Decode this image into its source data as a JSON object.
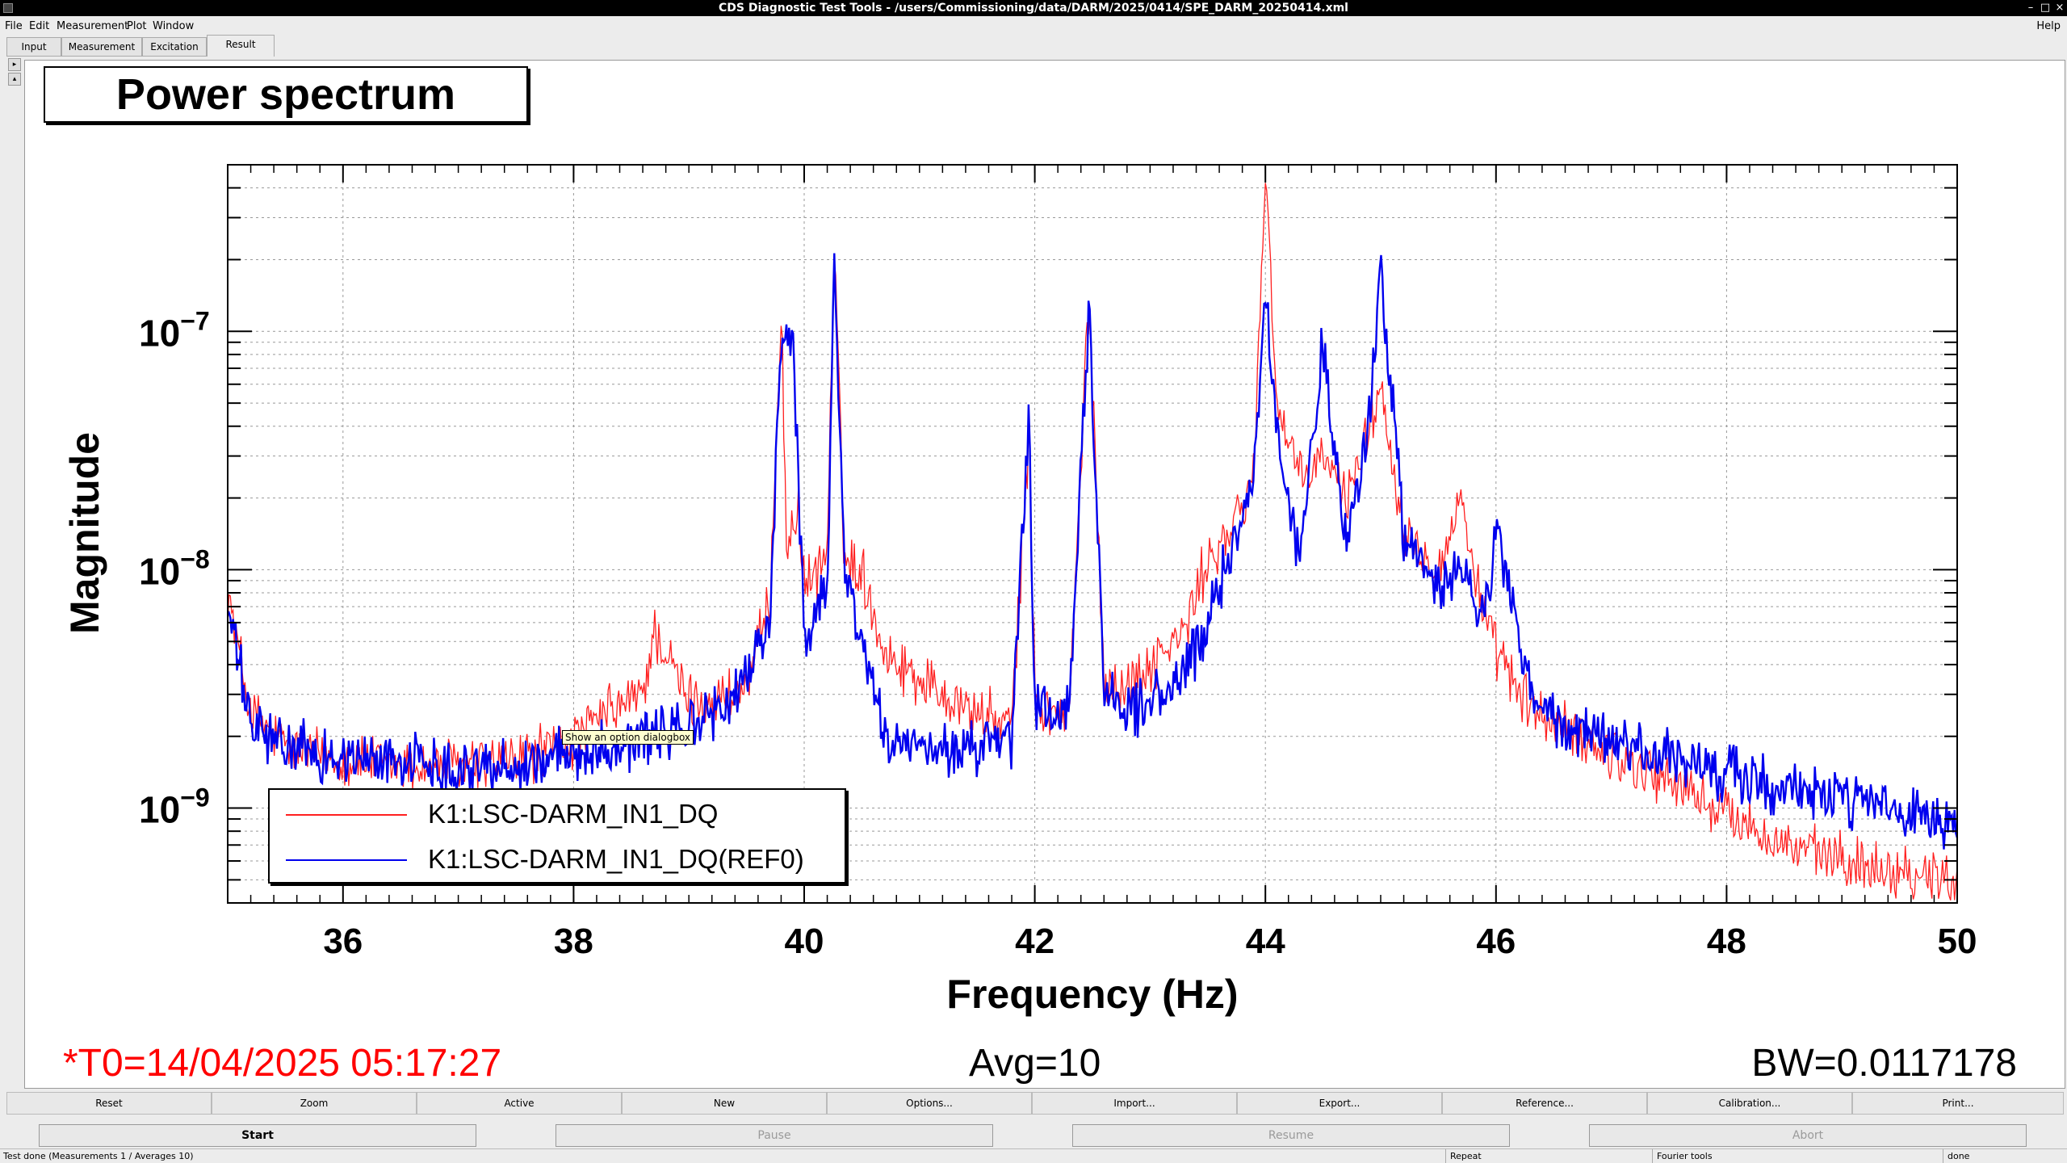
{
  "window": {
    "title": "CDS Diagnostic Test Tools - /users/Commissioning/data/DARM/2025/0414/SPE_DARM_20250414.xml"
  },
  "menu": {
    "items": [
      {
        "label": "File"
      },
      {
        "label": "Edit"
      },
      {
        "label": "Measurement"
      },
      {
        "label": "Plot"
      },
      {
        "label": "Window"
      }
    ],
    "help": "Help"
  },
  "tabs": [
    {
      "label": "Input"
    },
    {
      "label": "Measurement"
    },
    {
      "label": "Excitation"
    },
    {
      "label": "Result",
      "active": true
    }
  ],
  "plot": {
    "title": "Power spectrum",
    "tooltip": "Show an option dialogbox",
    "t0": "*T0=14/04/2025 05:17:27",
    "avg": "Avg=10",
    "bw": "BW=0.0117178"
  },
  "chart_data": {
    "type": "line",
    "title": "Power spectrum",
    "xlabel": "Frequency (Hz)",
    "ylabel": "Magnitude",
    "xlim": [
      35,
      50
    ],
    "ylim": [
      4e-10,
      5e-07
    ],
    "y_scale": "log",
    "grid": true,
    "legend_position": "bottom-left",
    "x_ticks": [
      "36",
      "38",
      "40",
      "42",
      "44",
      "46",
      "48",
      "50"
    ],
    "y_ticks": [
      {
        "base": "10",
        "exp": "−9"
      },
      {
        "base": "10",
        "exp": "−8"
      },
      {
        "base": "10",
        "exp": "−7"
      }
    ],
    "series": [
      {
        "name": "K1:LSC-DARM_IN1_DQ",
        "color": "#ff2020",
        "x": [
          35.0,
          35.2,
          35.5,
          36.0,
          36.5,
          37.0,
          37.5,
          38.0,
          38.3,
          38.6,
          38.7,
          39.0,
          39.3,
          39.5,
          39.7,
          39.8,
          39.85,
          39.95,
          40.0,
          40.2,
          40.26,
          40.35,
          40.5,
          40.7,
          41.0,
          41.5,
          41.8,
          41.95,
          42.0,
          42.1,
          42.3,
          42.47,
          42.6,
          42.8,
          43.0,
          43.3,
          43.5,
          43.7,
          43.9,
          44.0,
          44.1,
          44.3,
          44.5,
          44.7,
          44.9,
          45.0,
          45.2,
          45.5,
          45.7,
          45.9,
          46.0,
          46.3,
          46.6,
          47.0,
          47.5,
          48.0,
          48.5,
          49.0,
          49.5,
          50.0
        ],
        "y": [
          8e-09,
          2.5e-09,
          1.8e-09,
          1.6e-09,
          1.5e-09,
          1.5e-09,
          1.6e-09,
          1.9e-09,
          2.5e-09,
          3e-09,
          5.5e-09,
          2.8e-09,
          2.9e-09,
          3.2e-09,
          7e-09,
          1.3e-07,
          1.1e-08,
          2e-08,
          8e-09,
          1.2e-08,
          2.2e-07,
          1.1e-08,
          1e-08,
          4.5e-09,
          3.5e-09,
          2.5e-09,
          2.2e-09,
          3.8e-08,
          3e-09,
          2.5e-09,
          2.5e-09,
          1.4e-07,
          3.5e-09,
          3.2e-09,
          4e-09,
          5.5e-09,
          1.1e-08,
          1.4e-08,
          2.5e-08,
          5e-07,
          5e-08,
          2.3e-08,
          3e-08,
          2e-08,
          4e-08,
          6e-08,
          1.5e-08,
          1e-08,
          2e-08,
          6e-09,
          4.5e-09,
          2.6e-09,
          2.1e-09,
          1.7e-09,
          1.3e-09,
          9.5e-10,
          7e-10,
          6e-10,
          5.5e-10,
          5e-10
        ]
      },
      {
        "name": "K1:LSC-DARM_IN1_DQ(REF0)",
        "color": "#0000ee",
        "x": [
          35.0,
          35.2,
          35.5,
          36.0,
          36.5,
          37.0,
          37.5,
          38.0,
          38.5,
          39.0,
          39.3,
          39.5,
          39.7,
          39.8,
          39.9,
          40.0,
          40.2,
          40.26,
          40.35,
          40.5,
          40.7,
          41.0,
          41.5,
          41.8,
          41.95,
          42.0,
          42.1,
          42.3,
          42.47,
          42.6,
          42.8,
          43.0,
          43.3,
          43.5,
          43.7,
          43.9,
          44.0,
          44.1,
          44.3,
          44.5,
          44.7,
          44.9,
          45.0,
          45.2,
          45.5,
          45.7,
          45.9,
          46.0,
          46.3,
          46.6,
          47.0,
          47.5,
          48.0,
          48.5,
          49.0,
          49.5,
          50.0
        ],
        "y": [
          7e-09,
          2.2e-09,
          1.8e-09,
          1.6e-09,
          1.6e-09,
          1.5e-09,
          1.5e-09,
          1.7e-09,
          1.9e-09,
          2.2e-09,
          2.6e-09,
          3.5e-09,
          6e-09,
          9.5e-08,
          1e-07,
          5e-09,
          9e-09,
          2e-07,
          1e-08,
          5e-09,
          2e-09,
          1.7e-09,
          1.8e-09,
          1.9e-09,
          4.2e-08,
          2.8e-09,
          2.5e-09,
          2.5e-09,
          1.2e-07,
          3.2e-09,
          2.6e-09,
          2.8e-09,
          3.5e-09,
          6e-09,
          1.2e-08,
          2.6e-08,
          1.5e-07,
          3.5e-08,
          1.1e-08,
          9e-08,
          1.2e-08,
          4.5e-08,
          1.8e-07,
          1.4e-08,
          8e-09,
          1e-08,
          6e-09,
          1.5e-08,
          3e-09,
          2.1e-09,
          1.9e-09,
          1.6e-09,
          1.4e-09,
          1.2e-09,
          1.1e-09,
          9.5e-10,
          8e-10
        ]
      }
    ]
  },
  "buttons_row1": [
    {
      "label": "Reset"
    },
    {
      "label": "Zoom"
    },
    {
      "label": "Active"
    },
    {
      "label": "New"
    },
    {
      "label": "Options..."
    },
    {
      "label": "Import..."
    },
    {
      "label": "Export..."
    },
    {
      "label": "Reference..."
    },
    {
      "label": "Calibration..."
    },
    {
      "label": "Print..."
    }
  ],
  "buttons_row2": [
    {
      "label": "Start",
      "enabled": true
    },
    {
      "label": "Pause",
      "enabled": false
    },
    {
      "label": "Resume",
      "enabled": false
    },
    {
      "label": "Abort",
      "enabled": false
    }
  ],
  "status": {
    "main": "Test done (Measurements 1 / Averages 10)",
    "repeat": "Repeat",
    "tools": "Fourier tools",
    "state": "done"
  }
}
